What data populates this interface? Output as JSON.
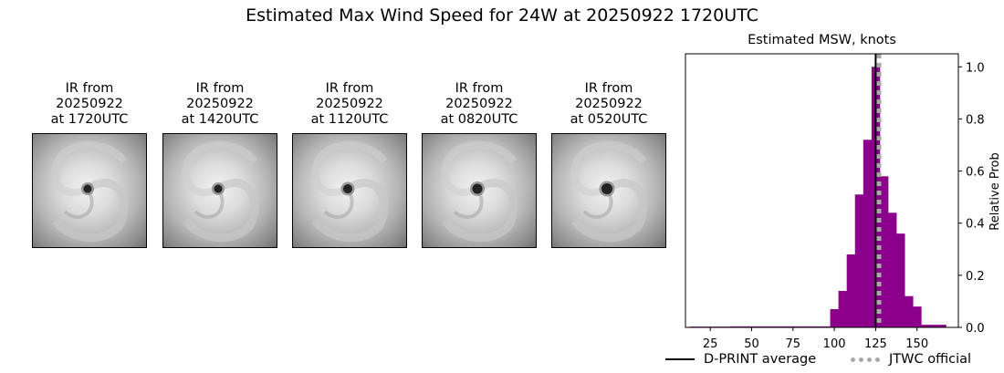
{
  "title": "Estimated Max Wind Speed for 24W at 20250922 1720UTC",
  "ir_panels": [
    {
      "line1": "IR from",
      "line2": "20250922",
      "line3": "at 1720UTC",
      "eye_radius": 4.5
    },
    {
      "line1": "IR from",
      "line2": "20250922",
      "line3": "at 1420UTC",
      "eye_radius": 4.5
    },
    {
      "line1": "IR from",
      "line2": "20250922",
      "line3": "at 1120UTC",
      "eye_radius": 5
    },
    {
      "line1": "IR from",
      "line2": "20250922",
      "line3": "at 0820UTC",
      "eye_radius": 5.5
    },
    {
      "line1": "IR from",
      "line2": "20250922",
      "line3": "at 0520UTC",
      "eye_radius": 6
    }
  ],
  "chart_data": {
    "type": "bar",
    "title": "Estimated MSW, knots",
    "xlabel": "",
    "ylabel": "Relative Prob",
    "xlim": [
      10,
      175
    ],
    "ylim": [
      0,
      1.05
    ],
    "xticks": [
      25,
      50,
      75,
      100,
      125,
      150
    ],
    "yticks": [
      0.0,
      0.2,
      0.4,
      0.6,
      0.8,
      1.0
    ],
    "ytick_labels": [
      "0.0",
      "0.2",
      "0.4",
      "0.6",
      "0.8",
      "1.0"
    ],
    "y_axis_side": "right",
    "bin_width": 5,
    "bars": [
      {
        "x": 15,
        "value": 0.003
      },
      {
        "x": 20,
        "value": 0.003
      },
      {
        "x": 25,
        "value": 0.003
      },
      {
        "x": 30,
        "value": 0.003
      },
      {
        "x": 35,
        "value": 0.003
      },
      {
        "x": 40,
        "value": 0.004
      },
      {
        "x": 45,
        "value": 0.004
      },
      {
        "x": 50,
        "value": 0.004
      },
      {
        "x": 55,
        "value": 0.004
      },
      {
        "x": 60,
        "value": 0.004
      },
      {
        "x": 65,
        "value": 0.004
      },
      {
        "x": 70,
        "value": 0.004
      },
      {
        "x": 75,
        "value": 0.004
      },
      {
        "x": 80,
        "value": 0.004
      },
      {
        "x": 85,
        "value": 0.004
      },
      {
        "x": 90,
        "value": 0.004
      },
      {
        "x": 95,
        "value": 0.004
      },
      {
        "x": 100,
        "value": 0.07
      },
      {
        "x": 105,
        "value": 0.14
      },
      {
        "x": 110,
        "value": 0.28
      },
      {
        "x": 115,
        "value": 0.51
      },
      {
        "x": 120,
        "value": 0.72
      },
      {
        "x": 125,
        "value": 1.0
      },
      {
        "x": 130,
        "value": 0.58
      },
      {
        "x": 135,
        "value": 0.44
      },
      {
        "x": 140,
        "value": 0.36
      },
      {
        "x": 145,
        "value": 0.12
      },
      {
        "x": 150,
        "value": 0.08
      },
      {
        "x": 155,
        "value": 0.01
      },
      {
        "x": 160,
        "value": 0.01
      },
      {
        "x": 165,
        "value": 0.01
      }
    ],
    "bar_color": "#8b008b",
    "lines": [
      {
        "name": "D-PRINT average",
        "x": 125,
        "style": "solid",
        "color": "#000000"
      },
      {
        "name": "JTWC official",
        "x": 127,
        "style": "dotted",
        "color": "#a9a9a9"
      }
    ],
    "legend_position": "below"
  }
}
